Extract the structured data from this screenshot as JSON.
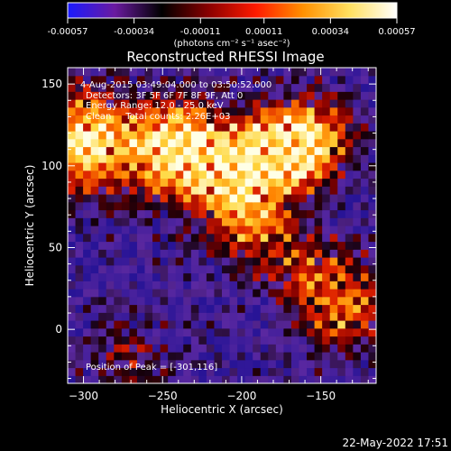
{
  "colorbar": {
    "ticks": [
      "-0.00057",
      "-0.00034",
      "-0.00011",
      "0.00011",
      "0.00034",
      "0.00057"
    ],
    "tick_values": [
      -0.00057,
      -0.00034,
      -0.00011,
      0.00011,
      0.00034,
      0.00057
    ],
    "range": [
      -0.00057,
      0.00057
    ],
    "unit_label": "(photons cm⁻² s⁻¹ asec⁻²)",
    "colors": [
      "#1a1aff",
      "#6a1aa0",
      "#000000",
      "#8a0000",
      "#ff1a00",
      "#ff9000",
      "#ffe060",
      "#ffffff"
    ]
  },
  "chart_data": {
    "type": "heatmap",
    "title": "Reconstructed RHESSI Image",
    "xlabel": "Heliocentric X (arcsec)",
    "ylabel": "Heliocentric Y (arcsec)",
    "xlim": [
      -310,
      -115
    ],
    "ylim": [
      -33,
      160
    ],
    "xticks": [
      -300,
      -250,
      -200,
      -150
    ],
    "yticks": [
      0,
      50,
      100,
      150
    ],
    "annotations": [
      "4-Aug-2015 03:49:04.000 to 03:50:52.000",
      "Detectors: 3F 5F 6F 7F 8F 9F, Att 0",
      "Energy Range: 12.0 - 25.0 keV",
      "Clean     Total counts: 2.26E+03"
    ],
    "peak_label": "Position of Peak = [-301,116]",
    "peak": [
      -301,
      116
    ],
    "sources": [
      {
        "x": -300,
        "y": 115,
        "peak": 1.0,
        "sigma": 22
      },
      {
        "x": -245,
        "y": 112,
        "peak": 0.95,
        "sigma": 20
      },
      {
        "x": -210,
        "y": 98,
        "peak": 0.85,
        "sigma": 22
      },
      {
        "x": -175,
        "y": 108,
        "peak": 0.95,
        "sigma": 16
      },
      {
        "x": -155,
        "y": 118,
        "peak": 0.75,
        "sigma": 18
      },
      {
        "x": -195,
        "y": 65,
        "peak": 0.55,
        "sigma": 16
      },
      {
        "x": -135,
        "y": 15,
        "peak": 0.65,
        "sigma": 20
      },
      {
        "x": -165,
        "y": 40,
        "peak": 0.4,
        "sigma": 18
      },
      {
        "x": -270,
        "y": -20,
        "peak": 0.3,
        "sigma": 20
      }
    ]
  },
  "footer": {
    "timestamp": "22-May-2022 17:51"
  }
}
